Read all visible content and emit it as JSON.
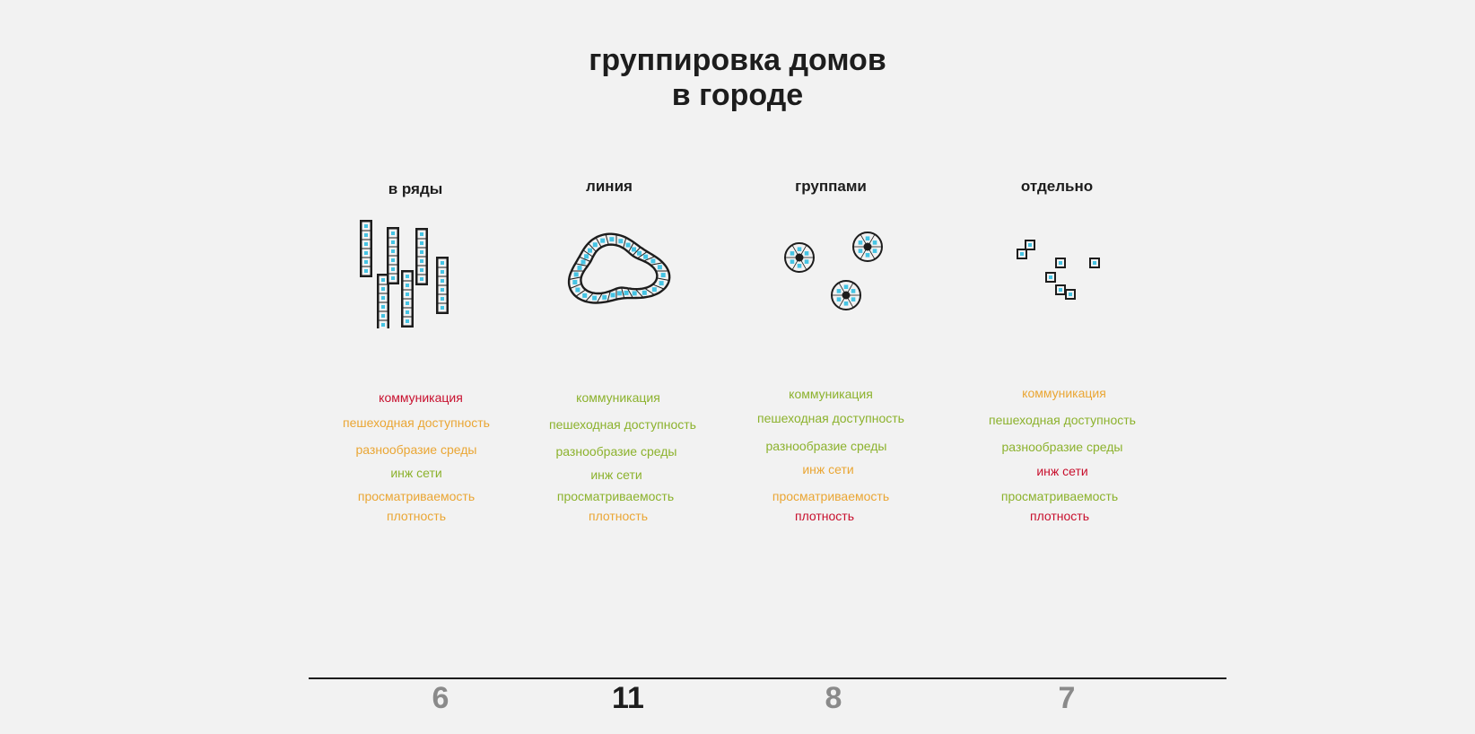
{
  "title": {
    "line1": "группировка домов",
    "line2": "в городе"
  },
  "colors": {
    "bad": "#c8102e",
    "medium": "#eaa634",
    "good": "#8cb22d",
    "score_muted": "#8a8a8a",
    "score_best": "#1d1d1d",
    "cell": "#45c4e4",
    "stroke": "#1d1d1d"
  },
  "columns": [
    {
      "heading": "в ряды",
      "icon": "rows-icon",
      "criteria": [
        {
          "label": "коммуникация",
          "rating": "bad"
        },
        {
          "label": "пешеходная доступность",
          "rating": "medium"
        },
        {
          "label": "разнообразие среды",
          "rating": "medium"
        },
        {
          "label": "инж сети",
          "rating": "good"
        },
        {
          "label": "просматриваемость",
          "rating": "medium"
        },
        {
          "label": "плотность",
          "rating": "medium"
        }
      ],
      "score": "6",
      "best": false
    },
    {
      "heading": "линия",
      "icon": "line-icon",
      "criteria": [
        {
          "label": "коммуникация",
          "rating": "good"
        },
        {
          "label": "пешеходная доступность",
          "rating": "good"
        },
        {
          "label": "разнообразие среды",
          "rating": "good"
        },
        {
          "label": "инж сети",
          "rating": "good"
        },
        {
          "label": "просматриваемость",
          "rating": "good"
        },
        {
          "label": "плотность",
          "rating": "medium"
        }
      ],
      "score": "11",
      "best": true
    },
    {
      "heading": "группами",
      "icon": "groups-icon",
      "criteria": [
        {
          "label": "коммуникация",
          "rating": "good"
        },
        {
          "label": "пешеходная доступность",
          "rating": "good"
        },
        {
          "label": "разнообразие среды",
          "rating": "good"
        },
        {
          "label": "инж сети",
          "rating": "medium"
        },
        {
          "label": "просматриваемость",
          "rating": "medium"
        },
        {
          "label": "плотность",
          "rating": "bad"
        }
      ],
      "score": "8",
      "best": false
    },
    {
      "heading": "отдельно",
      "icon": "separate-icon",
      "criteria": [
        {
          "label": "коммуникация",
          "rating": "medium"
        },
        {
          "label": "пешеходная доступность",
          "rating": "good"
        },
        {
          "label": "разнообразие среды",
          "rating": "good"
        },
        {
          "label": "инж сети",
          "rating": "bad"
        },
        {
          "label": "просматриваемость",
          "rating": "good"
        },
        {
          "label": "плотность",
          "rating": "bad"
        }
      ],
      "score": "7",
      "best": false
    }
  ]
}
